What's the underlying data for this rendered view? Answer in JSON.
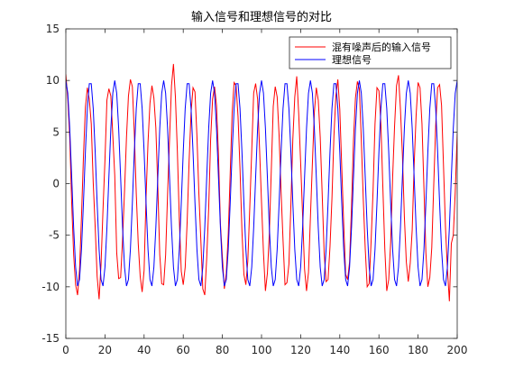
{
  "chart_data": {
    "type": "line",
    "title": "输入信号和理想信号的对比",
    "xlabel": "",
    "ylabel": "",
    "xlim": [
      0,
      200
    ],
    "ylim": [
      -15,
      15
    ],
    "x_ticks": [
      0,
      20,
      40,
      60,
      80,
      100,
      120,
      140,
      160,
      180,
      200
    ],
    "y_ticks": [
      -15,
      -10,
      -5,
      0,
      5,
      10,
      15
    ],
    "grid": false,
    "legend_position": "top-right",
    "ideal_signal": {
      "amplitude": 10,
      "period": 12.5,
      "phase_rad": 1.5708,
      "sample_step": 1
    },
    "series": [
      {
        "name": "混有噪声后的输入信号",
        "color": "#ff0000",
        "x": [
          0,
          1,
          2,
          3,
          4,
          5,
          6,
          7,
          8,
          9,
          10,
          11,
          12,
          13,
          14,
          15,
          16,
          17,
          18,
          19,
          20,
          21,
          22,
          23,
          24,
          25,
          26,
          27,
          28,
          29,
          30,
          31,
          32,
          33,
          34,
          35,
          36,
          37,
          38,
          39,
          40,
          41,
          42,
          43,
          44,
          45,
          46,
          47,
          48,
          49,
          50,
          51,
          52,
          53,
          54,
          55,
          56,
          57,
          58,
          59,
          60,
          61,
          62,
          63,
          64,
          65,
          66,
          67,
          68,
          69,
          70,
          71,
          72,
          73,
          74,
          75,
          76,
          77,
          78,
          79,
          80,
          81,
          82,
          83,
          84,
          85,
          86,
          87,
          88,
          89,
          90,
          91,
          92,
          93,
          94,
          95,
          96,
          97,
          98,
          99,
          100,
          101,
          102,
          103,
          104,
          105,
          106,
          107,
          108,
          109,
          110,
          111,
          112,
          113,
          114,
          115,
          116,
          117,
          118,
          119,
          120,
          121,
          122,
          123,
          124,
          125,
          126,
          127,
          128,
          129,
          130,
          131,
          132,
          133,
          134,
          135,
          136,
          137,
          138,
          139,
          140,
          141,
          142,
          143,
          144,
          145,
          146,
          147,
          148,
          149,
          150,
          151,
          152,
          153,
          154,
          155,
          156,
          157,
          158,
          159,
          160,
          161,
          162,
          163,
          164,
          165,
          166,
          167,
          168,
          169,
          170,
          171,
          172,
          173,
          174,
          175,
          176,
          177,
          178,
          179,
          180,
          181,
          182,
          183,
          184,
          185,
          186,
          187,
          188,
          189,
          190,
          191,
          192,
          193,
          194,
          195,
          196,
          197,
          198,
          199,
          200
        ],
        "y": [
          10.6,
          8.2,
          4.5,
          -1.9,
          -6.9,
          -9.8,
          -10.8,
          -8.4,
          -3.2,
          2.6,
          7.4,
          9.3,
          8.2,
          5.8,
          0.1,
          -4.2,
          -9.0,
          -11.2,
          -7.8,
          -2.5,
          2.3,
          8.1,
          9.2,
          8.5,
          4.7,
          0.8,
          -6.7,
          -9.2,
          -9.1,
          -5.4,
          -0.7,
          4.5,
          8.5,
          10.1,
          9.4,
          4.9,
          -1.0,
          -5.8,
          -9.0,
          -10.5,
          -8.4,
          -1.3,
          4.0,
          7.8,
          9.5,
          8.3,
          5.4,
          -0.3,
          -6.9,
          -9.7,
          -9.8,
          -6.9,
          -1.0,
          4.3,
          9.5,
          11.6,
          8.4,
          3.1,
          -3.5,
          -8.5,
          -9.8,
          -8.1,
          -3.7,
          2.2,
          6.9,
          9.3,
          8.9,
          4.6,
          -1.0,
          -5.5,
          -10.2,
          -10.8,
          -7.2,
          -2.4,
          4.3,
          8.2,
          9.4,
          7.6,
          2.8,
          -3.9,
          -7.1,
          -10.2,
          -8.7,
          -4.9,
          1.0,
          6.9,
          9.8,
          9.5,
          6.5,
          1.5,
          -4.6,
          -8.8,
          -9.8,
          -7.5,
          -2.3,
          3.2,
          8.8,
          9.7,
          8.2,
          3.4,
          -1.8,
          -6.7,
          -10.4,
          -8.7,
          -4.8,
          1.3,
          7.5,
          9.4,
          8.4,
          4.6,
          -0.8,
          -5.5,
          -9.8,
          -9.6,
          -7.8,
          -2.1,
          4.3,
          8.4,
          10.4,
          6.8,
          2.0,
          -3.1,
          -8.3,
          -10.4,
          -8.6,
          -3.2,
          2.0,
          6.9,
          9.3,
          8.1,
          4.5,
          -1.0,
          -6.7,
          -9.5,
          -9.3,
          -6.1,
          -1.4,
          4.6,
          8.5,
          10.1,
          7.2,
          1.6,
          -3.9,
          -8.8,
          -9.3,
          -7.6,
          -2.2,
          4.2,
          8.3,
          9.9,
          9.2,
          4.2,
          -1.5,
          -6.3,
          -10.0,
          -9.7,
          -5.6,
          -0.7,
          5.8,
          9.3,
          9.0,
          5.8,
          -0.3,
          -6.3,
          -10.4,
          -9.3,
          -5.7,
          0.6,
          5.6,
          9.5,
          10.5,
          7.2,
          2.8,
          -3.2,
          -7.6,
          -9.5,
          -7.7,
          -4.5,
          1.8,
          6.6,
          9.8,
          9.3,
          5.8,
          -0.4,
          -6.7,
          -10.0,
          -9.1,
          -6.2,
          -0.2,
          5.6,
          9.3,
          9.6,
          7.6,
          1.7,
          -4.2,
          -8.3,
          -11.4,
          -5.8,
          -5.0,
          -0.8,
          4.9
        ]
      },
      {
        "name": "理想信号",
        "color": "#0000ff"
      }
    ]
  }
}
